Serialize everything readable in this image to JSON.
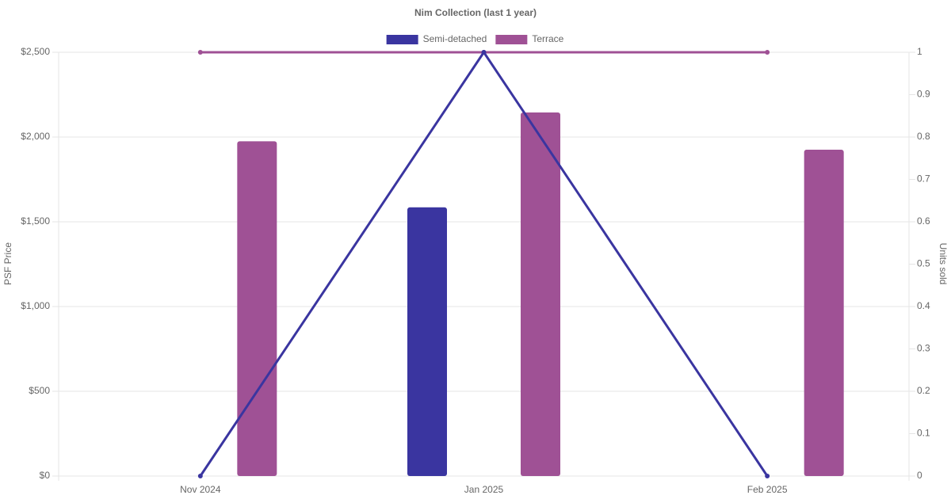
{
  "chart_data": {
    "type": "bar-line",
    "title": "Nim Collection (last 1 year)",
    "y_label": "PSF Price",
    "y2_label": "Units sold",
    "categories": [
      "Nov 2024",
      "Jan 2025",
      "Feb 2025"
    ],
    "series": [
      {
        "name": "Semi-detached",
        "color": "#3a35a0",
        "values": [
          null,
          1585,
          null
        ],
        "units": [
          0,
          1,
          0
        ]
      },
      {
        "name": "Terrace",
        "color": "#9f5195",
        "values": [
          1975,
          2145,
          1925
        ],
        "units": [
          1,
          1,
          1
        ]
      }
    ],
    "ylim": [
      0,
      2500
    ],
    "yticks": [
      {
        "value": 0,
        "label": "$0"
      },
      {
        "value": 500,
        "label": "$500"
      },
      {
        "value": 1000,
        "label": "$1,000"
      },
      {
        "value": 1500,
        "label": "$1,500"
      },
      {
        "value": 2000,
        "label": "$2,000"
      },
      {
        "value": 2500,
        "label": "$2,500"
      }
    ],
    "y2lim": [
      0,
      1
    ],
    "y2ticks": [
      0,
      0.1,
      0.2,
      0.3,
      0.4,
      0.5,
      0.6,
      0.7,
      0.8,
      0.9,
      1
    ],
    "grid": true,
    "legend": "top"
  }
}
